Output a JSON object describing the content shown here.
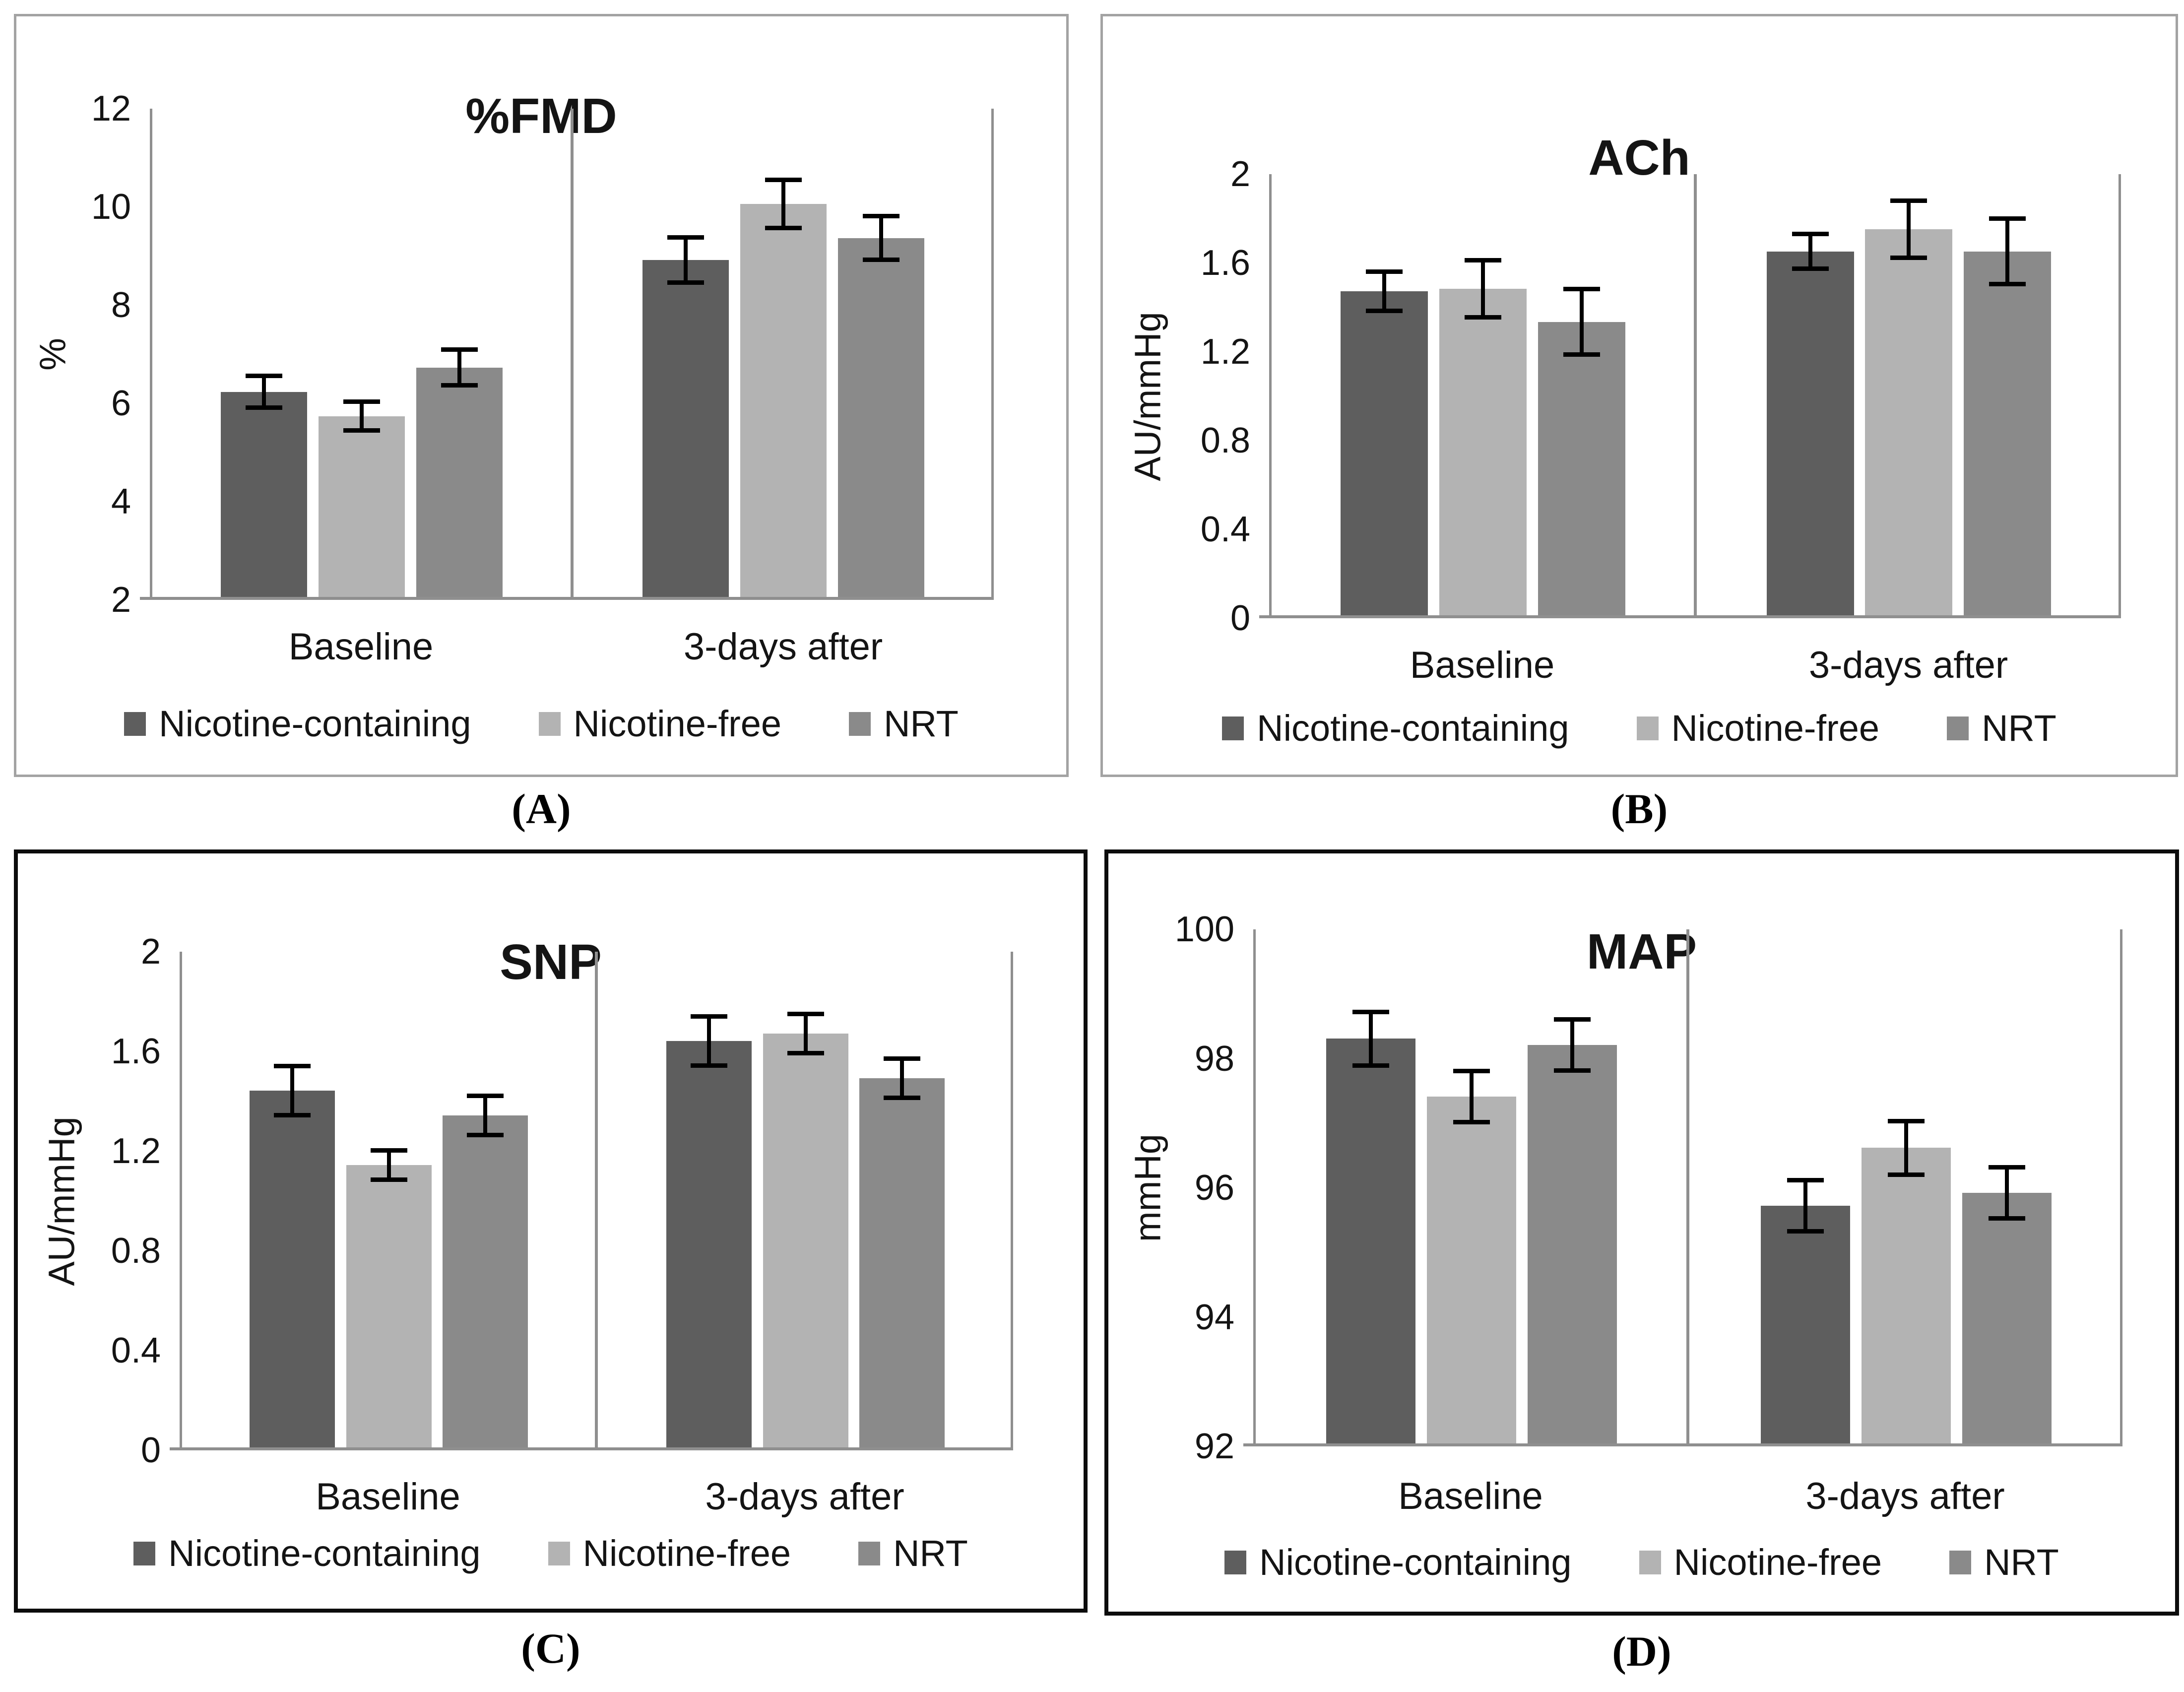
{
  "figure_labels": [
    "(A)",
    "(B)",
    "(C)",
    "(D)"
  ],
  "legend": {
    "items": [
      {
        "label": "Nicotine-containing",
        "color": "#5e5e5e"
      },
      {
        "label": "Nicotine-free",
        "color": "#b3b3b3"
      },
      {
        "label": "NRT",
        "color": "#8a8a8a"
      }
    ]
  },
  "colors": {
    "axis_line": "#8f8f8f",
    "error_bar": "#000000",
    "panel_border_light": "#a3a3a3",
    "panel_border_dark": "#0c0c0c",
    "text": "#141414"
  },
  "chart_data": [
    {
      "type": "bar",
      "panel": "A",
      "title": "%FMD",
      "xlabel": "",
      "ylabel": "%",
      "ylim": [
        2,
        12
      ],
      "yticks": [
        "12",
        "10",
        "8",
        "6",
        "4",
        "2"
      ],
      "categories": [
        "Baseline",
        "3-days after"
      ],
      "grid": false,
      "legend_position": "bottom",
      "error_bars": true,
      "series": [
        {
          "name": "Nicotine-containing",
          "color": "#5e5e5e",
          "values": [
            6.2,
            8.9
          ],
          "errors": [
            0.33,
            0.47
          ]
        },
        {
          "name": "Nicotine-free",
          "color": "#b3b3b3",
          "values": [
            5.7,
            10.05
          ],
          "errors": [
            0.3,
            0.5
          ]
        },
        {
          "name": "NRT",
          "color": "#8a8a8a",
          "values": [
            6.7,
            9.35
          ],
          "errors": [
            0.37,
            0.45
          ]
        }
      ]
    },
    {
      "type": "bar",
      "panel": "B",
      "title": "ACh",
      "xlabel": "",
      "ylabel": "AU/mmHg",
      "ylim": [
        0,
        2
      ],
      "yticks": [
        "2",
        "1.6",
        "1.2",
        "0.8",
        "0.4",
        "0"
      ],
      "categories": [
        "Baseline",
        "3-days after"
      ],
      "grid": false,
      "legend_position": "bottom",
      "error_bars": true,
      "series": [
        {
          "name": "Nicotine-containing",
          "color": "#5e5e5e",
          "values": [
            1.47,
            1.65
          ],
          "errors": [
            0.09,
            0.08
          ]
        },
        {
          "name": "Nicotine-free",
          "color": "#b3b3b3",
          "values": [
            1.48,
            1.75
          ],
          "errors": [
            0.13,
            0.13
          ]
        },
        {
          "name": "NRT",
          "color": "#8a8a8a",
          "values": [
            1.33,
            1.65
          ],
          "errors": [
            0.15,
            0.15
          ]
        }
      ]
    },
    {
      "type": "bar",
      "panel": "C",
      "title": "SNP",
      "xlabel": "",
      "ylabel": "AU/mmHg",
      "ylim": [
        0,
        2
      ],
      "yticks": [
        "2",
        "1.6",
        "1.2",
        "0.8",
        "0.4",
        "0"
      ],
      "categories": [
        "Baseline",
        "3-days after"
      ],
      "grid": false,
      "legend_position": "bottom",
      "error_bars": true,
      "series": [
        {
          "name": "Nicotine-containing",
          "color": "#5e5e5e",
          "values": [
            1.44,
            1.64
          ],
          "errors": [
            0.1,
            0.1
          ]
        },
        {
          "name": "Nicotine-free",
          "color": "#b3b3b3",
          "values": [
            1.14,
            1.67
          ],
          "errors": [
            0.06,
            0.08
          ]
        },
        {
          "name": "NRT",
          "color": "#8a8a8a",
          "values": [
            1.34,
            1.49
          ],
          "errors": [
            0.08,
            0.08
          ]
        }
      ]
    },
    {
      "type": "bar",
      "panel": "D",
      "title": "MAP",
      "xlabel": "",
      "ylabel": "mmHg",
      "ylim": [
        92,
        100
      ],
      "yticks": [
        "100",
        "98",
        "96",
        "94",
        "92"
      ],
      "categories": [
        "Baseline",
        "3-days after"
      ],
      "grid": false,
      "legend_position": "bottom",
      "error_bars": true,
      "series": [
        {
          "name": "Nicotine-containing",
          "color": "#5e5e5e",
          "values": [
            98.3,
            95.7
          ],
          "errors": [
            0.42,
            0.4
          ]
        },
        {
          "name": "Nicotine-free",
          "color": "#b3b3b3",
          "values": [
            97.4,
            96.6
          ],
          "errors": [
            0.4,
            0.42
          ]
        },
        {
          "name": "NRT",
          "color": "#8a8a8a",
          "values": [
            98.2,
            95.9
          ],
          "errors": [
            0.4,
            0.4
          ]
        }
      ]
    }
  ]
}
